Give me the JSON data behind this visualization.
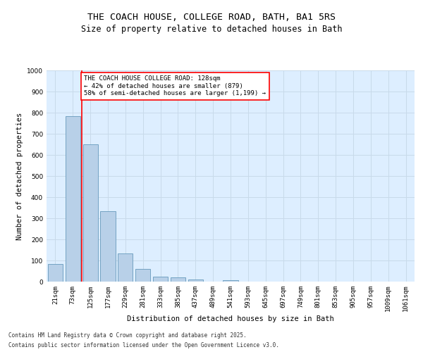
{
  "title": "THE COACH HOUSE, COLLEGE ROAD, BATH, BA1 5RS",
  "subtitle": "Size of property relative to detached houses in Bath",
  "xlabel": "Distribution of detached houses by size in Bath",
  "ylabel": "Number of detached properties",
  "categories": [
    "21sqm",
    "73sqm",
    "125sqm",
    "177sqm",
    "229sqm",
    "281sqm",
    "333sqm",
    "385sqm",
    "437sqm",
    "489sqm",
    "541sqm",
    "593sqm",
    "645sqm",
    "697sqm",
    "749sqm",
    "801sqm",
    "853sqm",
    "905sqm",
    "957sqm",
    "1009sqm",
    "1061sqm"
  ],
  "values": [
    85,
    785,
    650,
    335,
    135,
    60,
    25,
    20,
    10,
    0,
    8,
    0,
    0,
    0,
    0,
    0,
    0,
    0,
    0,
    0,
    0
  ],
  "bar_color": "#b8d0e8",
  "bar_edge_color": "#6699bb",
  "grid_color": "#c8daea",
  "background_color": "#ddeeff",
  "annotation_line1": "THE COACH HOUSE COLLEGE ROAD: 128sqm",
  "annotation_line2": "← 42% of detached houses are smaller (879)",
  "annotation_line3": "58% of semi-detached houses are larger (1,199) →",
  "annotation_box_color": "white",
  "annotation_box_edge": "red",
  "vline_color": "red",
  "vline_x_index": 2,
  "ylim": [
    0,
    1000
  ],
  "yticks": [
    0,
    100,
    200,
    300,
    400,
    500,
    600,
    700,
    800,
    900,
    1000
  ],
  "footer_line1": "Contains HM Land Registry data © Crown copyright and database right 2025.",
  "footer_line2": "Contains public sector information licensed under the Open Government Licence v3.0.",
  "title_fontsize": 9.5,
  "subtitle_fontsize": 8.5,
  "axis_label_fontsize": 7.5,
  "tick_fontsize": 6.5,
  "annotation_fontsize": 6.5,
  "footer_fontsize": 5.5,
  "ylabel_fontsize": 7.5
}
